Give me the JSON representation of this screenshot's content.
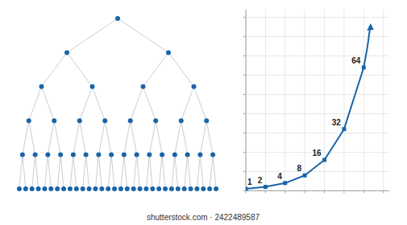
{
  "tree": {
    "level_counts": [
      1,
      2,
      4,
      8,
      16,
      32
    ]
  },
  "chart_data": {
    "type": "line",
    "x": [
      0,
      1,
      2,
      3,
      4,
      5,
      6
    ],
    "values": [
      1,
      2,
      4,
      8,
      16,
      32,
      64
    ],
    "color": "#1a64a8",
    "marker": "square",
    "data_labels": true,
    "xlim": [
      0,
      7.3
    ],
    "ylim": [
      0,
      94
    ],
    "xticks": [
      0,
      1,
      2,
      3,
      4,
      5,
      6,
      7
    ],
    "yticks": [
      0,
      10,
      20,
      30,
      40,
      50,
      60,
      70,
      80,
      90
    ],
    "grid": true,
    "tick_labels": false
  },
  "watermark": "shutterstock.com · 2422489587"
}
